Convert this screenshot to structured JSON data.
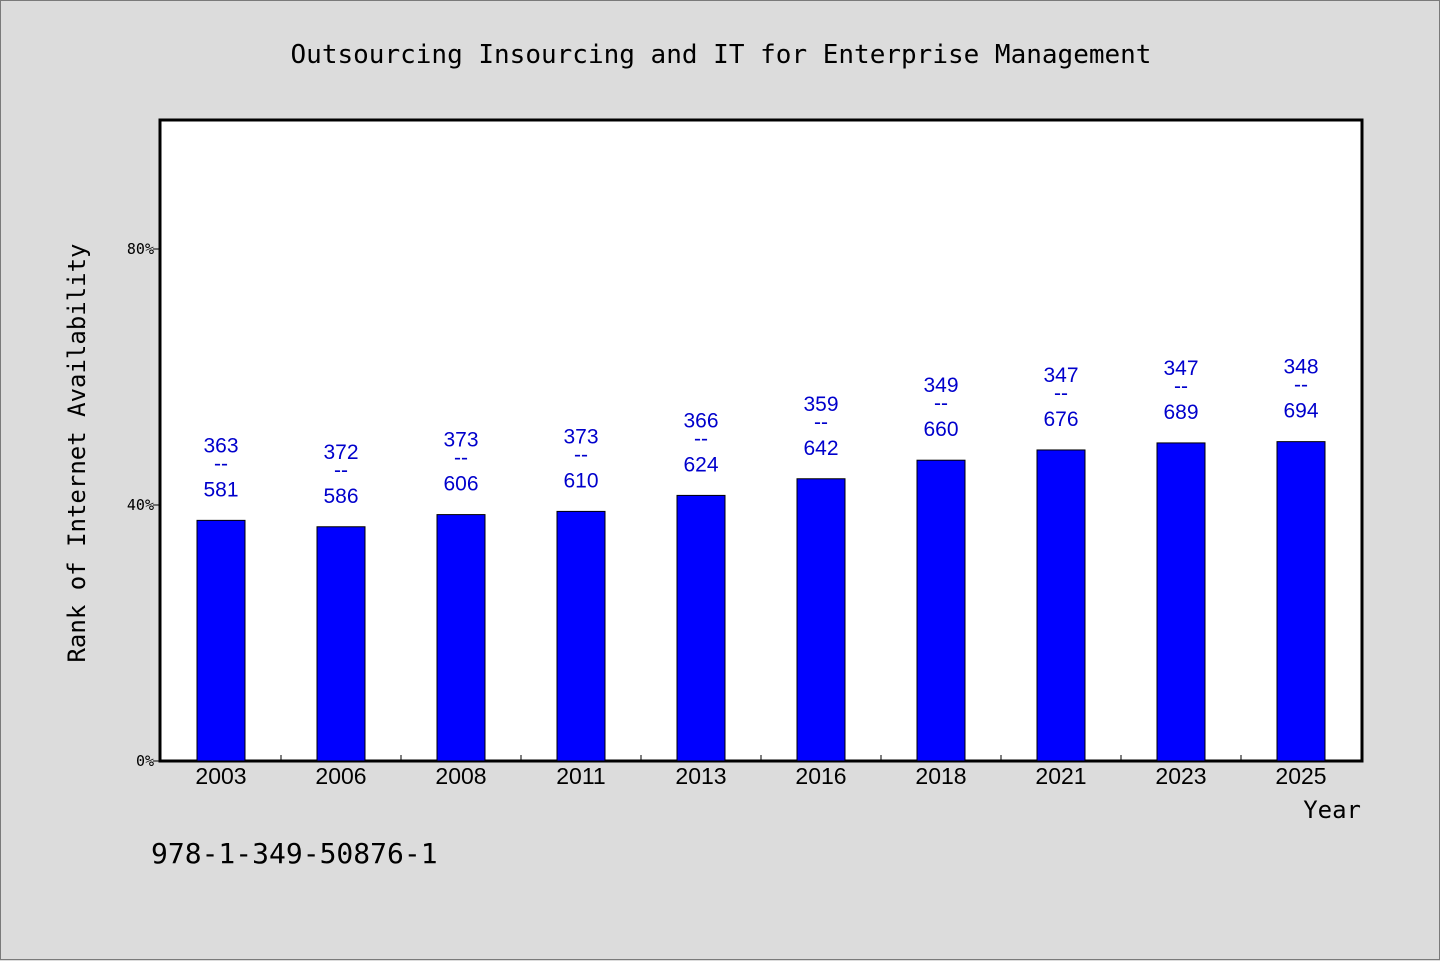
{
  "chart_data": {
    "type": "bar",
    "title": "Outsourcing Insourcing and IT for Enterprise Management",
    "xlabel": "Year",
    "ylabel": "Rank of Internet Availability",
    "categories": [
      "2003",
      "2006",
      "2008",
      "2011",
      "2013",
      "2016",
      "2018",
      "2021",
      "2023",
      "2025"
    ],
    "series": [
      {
        "values": [
          0.376,
          0.366,
          0.385,
          0.39,
          0.415,
          0.441,
          0.47,
          0.486,
          0.497,
          0.499
        ]
      }
    ],
    "data_labels": [
      {
        "top": "363",
        "sep": "--",
        "bottom": "581"
      },
      {
        "top": "372",
        "sep": "--",
        "bottom": "586"
      },
      {
        "top": "373",
        "sep": "--",
        "bottom": "606"
      },
      {
        "top": "373",
        "sep": "--",
        "bottom": "610"
      },
      {
        "top": "366",
        "sep": "--",
        "bottom": "624"
      },
      {
        "top": "359",
        "sep": "--",
        "bottom": "642"
      },
      {
        "top": "349",
        "sep": "--",
        "bottom": "660"
      },
      {
        "top": "347",
        "sep": "--",
        "bottom": "676"
      },
      {
        "top": "347",
        "sep": "--",
        "bottom": "689"
      },
      {
        "top": "348",
        "sep": "--",
        "bottom": "694"
      }
    ],
    "ylim": [
      0,
      1.0
    ],
    "yticks": [
      {
        "value": 0,
        "label": "0%"
      },
      {
        "value": 0.4,
        "label": "40%"
      },
      {
        "value": 0.8,
        "label": "80%"
      }
    ],
    "grid": false,
    "colors": {
      "bar": "#0000ff",
      "data_label": "#0000cc",
      "background": "#dcdcdc",
      "plot_background": "#ffffff"
    }
  },
  "footer": {
    "code": "978-1-349-50876-1"
  }
}
